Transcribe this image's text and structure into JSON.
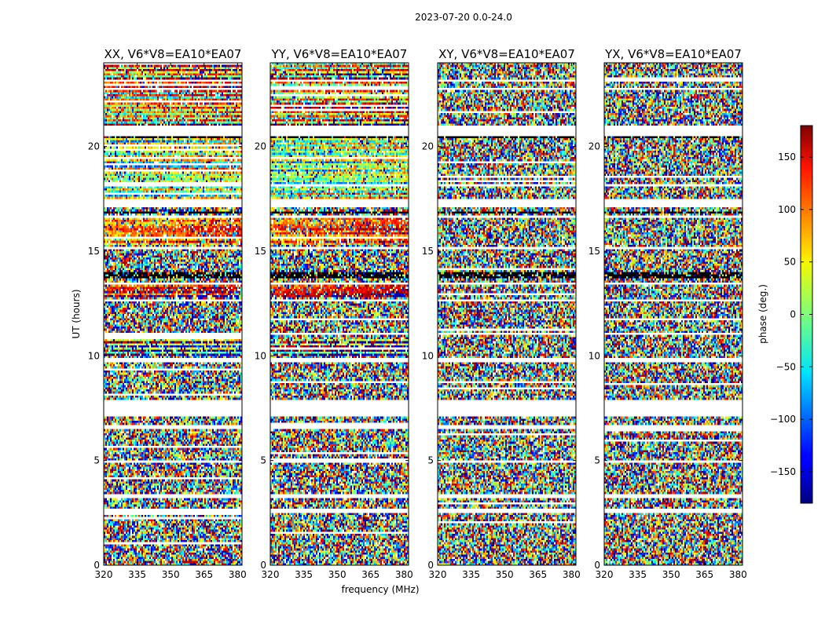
{
  "chart_data": {
    "type": "heatmap",
    "suptitle": "2023-07-20 0.0-24.0",
    "xlabel": "frequency (MHz)",
    "ylabel": "UT (hours)",
    "xlim": [
      320,
      382
    ],
    "ylim": [
      0,
      24
    ],
    "x_ticks": [
      320,
      335,
      350,
      365,
      380
    ],
    "y_ticks": [
      0,
      5,
      10,
      15,
      20
    ],
    "colormap": "jet",
    "colorbar": {
      "label": "phase (deg.)",
      "range": [
        -180,
        180
      ],
      "ticks": [
        150,
        100,
        50,
        0,
        -50,
        -100,
        -150
      ],
      "tick_labels": [
        "150",
        "100",
        "50",
        "0",
        "−50",
        "−100",
        "−150"
      ]
    },
    "panels": [
      {
        "title": "XX, V6*V8=EA10*EA07",
        "show_xlabel": false
      },
      {
        "title": "YY, V6*V8=EA10*EA07",
        "show_xlabel": true
      },
      {
        "title": "XY, V6*V8=EA10*EA07",
        "show_xlabel": false
      },
      {
        "title": "YX, V6*V8=EA10*EA07",
        "show_xlabel": false
      }
    ],
    "flagged_hours": [
      [
        20.5,
        21.0
      ],
      [
        17.1,
        17.5
      ],
      [
        16.6,
        16.75
      ],
      [
        13.4,
        13.55
      ],
      [
        11.0,
        11.1
      ],
      [
        9.7,
        9.9
      ],
      [
        7.1,
        7.9
      ],
      [
        6.55,
        6.7
      ],
      [
        4.9,
        5.0
      ],
      [
        3.2,
        3.4
      ],
      [
        2.5,
        2.7
      ],
      [
        23.1,
        23.2
      ],
      [
        22.7,
        22.85
      ],
      [
        18.1,
        18.2
      ],
      [
        15.1,
        15.2
      ],
      [
        12.6,
        12.7
      ]
    ],
    "dark_bands_hours": [
      [
        13.7,
        14.05
      ],
      [
        20.4,
        20.5
      ],
      [
        16.8,
        16.9
      ]
    ],
    "structured_hours": [
      {
        "range": [
          21.0,
          24.0
        ],
        "panels": [
          0,
          1
        ],
        "base_phase": [
          -30,
          120
        ]
      },
      {
        "range": [
          17.5,
          20.5
        ],
        "panels": [
          0,
          1
        ],
        "base_phase": [
          40,
          -60
        ]
      },
      {
        "range": [
          15.3,
          16.6
        ],
        "panels": [
          0,
          1
        ],
        "base_phase": [
          60,
          90
        ]
      },
      {
        "range": [
          12.8,
          13.4
        ],
        "panels": [
          0,
          1
        ],
        "base_phase": [
          120,
          150
        ]
      },
      {
        "range": [
          10.0,
          10.8
        ],
        "panels": [
          0,
          1
        ],
        "base_phase": [
          -20,
          160
        ]
      }
    ]
  }
}
